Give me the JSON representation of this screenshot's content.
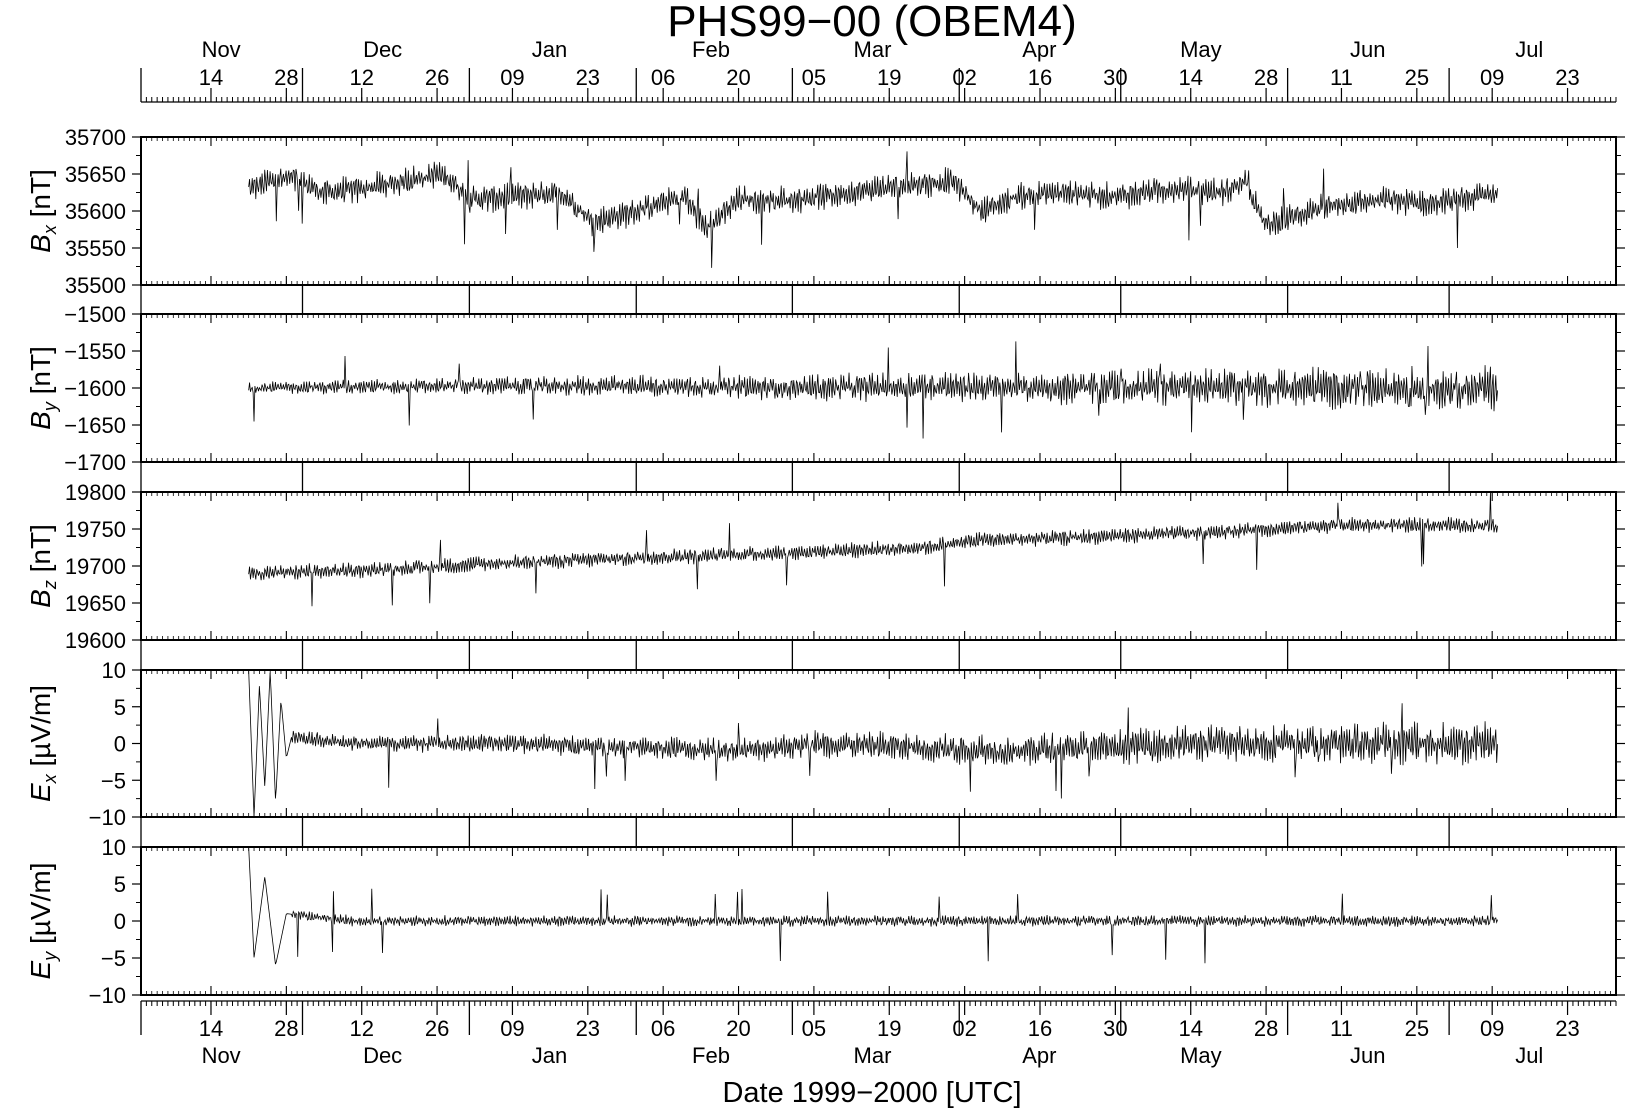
{
  "chart_data": {
    "type": "line",
    "title": "PHS99−00 (OBEM4)",
    "xlabel": "Date 1999−2000 [UTC]",
    "x_range": [
      "1999-11-01",
      "2000-07-31"
    ],
    "month_labels": [
      "Nov",
      "Dec",
      "Jan",
      "Feb",
      "Mar",
      "Apr",
      "May",
      "Jun",
      "Jul"
    ],
    "day_ticks": [
      {
        "date": "1999-11-14",
        "label": "14"
      },
      {
        "date": "1999-11-28",
        "label": "28"
      },
      {
        "date": "1999-12-12",
        "label": "12"
      },
      {
        "date": "1999-12-26",
        "label": "26"
      },
      {
        "date": "2000-01-09",
        "label": "09"
      },
      {
        "date": "2000-01-23",
        "label": "23"
      },
      {
        "date": "2000-02-06",
        "label": "06"
      },
      {
        "date": "2000-02-20",
        "label": "20"
      },
      {
        "date": "2000-03-05",
        "label": "05"
      },
      {
        "date": "2000-03-19",
        "label": "19"
      },
      {
        "date": "2000-04-02",
        "label": "02"
      },
      {
        "date": "2000-04-16",
        "label": "16"
      },
      {
        "date": "2000-04-30",
        "label": "30"
      },
      {
        "date": "2000-05-14",
        "label": "14"
      },
      {
        "date": "2000-05-28",
        "label": "28"
      },
      {
        "date": "2000-06-11",
        "label": "11"
      },
      {
        "date": "2000-06-25",
        "label": "25"
      },
      {
        "date": "2000-07-09",
        "label": "09"
      },
      {
        "date": "2000-07-23",
        "label": "23"
      }
    ],
    "data_span": [
      "1999-11-21",
      "2000-07-10"
    ],
    "panels": [
      {
        "id": "bx",
        "symbol": "B",
        "subscript": "x",
        "unit": "[nT]",
        "ylim": [
          35500,
          35700
        ],
        "yticks": [
          {
            "value": 35500,
            "label": "35500"
          },
          {
            "value": 35550,
            "label": "35550"
          },
          {
            "value": 35600,
            "label": "35600"
          },
          {
            "value": 35650,
            "label": "35650"
          },
          {
            "value": 35700,
            "label": "35700"
          }
        ],
        "series": {
          "x": [
            "1999-11-21",
            "1999-11-25",
            "1999-11-29",
            "1999-12-05",
            "1999-12-12",
            "1999-12-20",
            "1999-12-26",
            "1999-12-29",
            "2000-01-01",
            "2000-01-09",
            "2000-01-18",
            "2000-01-24",
            "2000-02-01",
            "2000-02-10",
            "2000-02-14",
            "2000-02-20",
            "2000-03-01",
            "2000-03-12",
            "2000-03-22",
            "2000-03-31",
            "2000-04-05",
            "2000-04-12",
            "2000-04-20",
            "2000-04-30",
            "2000-05-10",
            "2000-05-20",
            "2000-05-24",
            "2000-05-28",
            "2000-06-05",
            "2000-06-11",
            "2000-06-20",
            "2000-06-27",
            "2000-07-03",
            "2000-07-10"
          ],
          "y": [
            35630,
            35640,
            35645,
            35625,
            35630,
            35640,
            35650,
            35640,
            35615,
            35620,
            35625,
            35585,
            35600,
            35620,
            35575,
            35615,
            35615,
            35625,
            35635,
            35640,
            35600,
            35620,
            35625,
            35620,
            35630,
            35625,
            35640,
            35580,
            35600,
            35610,
            35615,
            35610,
            35615,
            35625
          ]
        }
      },
      {
        "id": "by",
        "symbol": "B",
        "subscript": "y",
        "unit": "[nT]",
        "ylim": [
          -1700,
          -1500
        ],
        "yticks": [
          {
            "value": -1700,
            "label": "−1700"
          },
          {
            "value": -1650,
            "label": "−1650"
          },
          {
            "value": -1600,
            "label": "−1600"
          },
          {
            "value": -1550,
            "label": "−1550"
          },
          {
            "value": -1500,
            "label": "−1500"
          }
        ],
        "series": {
          "x": [
            "1999-11-21",
            "1999-12-15",
            "2000-01-10",
            "2000-02-05",
            "2000-03-01",
            "2000-03-25",
            "2000-04-20",
            "2000-05-15",
            "2000-06-10",
            "2000-07-10"
          ],
          "y": [
            -1600,
            -1598,
            -1597,
            -1598,
            -1600,
            -1598,
            -1600,
            -1598,
            -1600,
            -1600
          ]
        }
      },
      {
        "id": "bz",
        "symbol": "B",
        "subscript": "z",
        "unit": "[nT]",
        "ylim": [
          19600,
          19800
        ],
        "yticks": [
          {
            "value": 19600,
            "label": "19600"
          },
          {
            "value": 19650,
            "label": "19650"
          },
          {
            "value": 19700,
            "label": "19700"
          },
          {
            "value": 19750,
            "label": "19750"
          },
          {
            "value": 19800,
            "label": "19800"
          }
        ],
        "series": {
          "x": [
            "1999-11-21",
            "1999-12-15",
            "2000-01-10",
            "2000-02-05",
            "2000-03-01",
            "2000-03-25",
            "2000-04-05",
            "2000-04-20",
            "2000-05-15",
            "2000-06-10",
            "2000-07-10"
          ],
          "y": [
            19690,
            19695,
            19705,
            19712,
            19718,
            19725,
            19735,
            19738,
            19745,
            19755,
            19755
          ]
        }
      },
      {
        "id": "ex",
        "symbol": "E",
        "subscript": "x",
        "unit": "[µV/m]",
        "ylim": [
          -10,
          10
        ],
        "yticks": [
          {
            "value": -10,
            "label": "−10"
          },
          {
            "value": -5,
            "label": "−5"
          },
          {
            "value": 0,
            "label": "0"
          },
          {
            "value": 5,
            "label": "5"
          },
          {
            "value": 10,
            "label": "10"
          }
        ],
        "series": {
          "x": [
            "1999-11-21",
            "1999-11-22",
            "1999-11-23",
            "1999-11-24",
            "1999-11-25",
            "1999-11-26",
            "1999-11-27",
            "1999-11-28",
            "1999-11-29",
            "1999-12-10",
            "2000-01-10",
            "2000-02-20",
            "2000-03-06",
            "2000-04-10",
            "2000-05-15",
            "2000-06-10",
            "2000-07-10"
          ],
          "y": [
            10,
            -10,
            8,
            -6,
            10,
            -8,
            6,
            -2,
            1,
            0,
            0,
            -1,
            0,
            -1,
            0,
            0,
            0
          ]
        }
      },
      {
        "id": "ey",
        "symbol": "E",
        "subscript": "y",
        "unit": "[µV/m]",
        "ylim": [
          -10,
          10
        ],
        "yticks": [
          {
            "value": -10,
            "label": "−10"
          },
          {
            "value": -5,
            "label": "−5"
          },
          {
            "value": 0,
            "label": "0"
          },
          {
            "value": 5,
            "label": "5"
          },
          {
            "value": 10,
            "label": "10"
          }
        ],
        "series": {
          "x": [
            "1999-11-21",
            "1999-11-22",
            "1999-11-24",
            "1999-11-26",
            "1999-11-28",
            "1999-12-10",
            "2000-01-10",
            "2000-02-10",
            "2000-02-25",
            "2000-03-06",
            "2000-03-20",
            "2000-04-10",
            "2000-05-10",
            "2000-05-27",
            "2000-06-10",
            "2000-07-10"
          ],
          "y": [
            10,
            -5,
            6,
            -6,
            1,
            0,
            0,
            0,
            0,
            0,
            0,
            0,
            0,
            0,
            0,
            0
          ]
        }
      }
    ]
  }
}
